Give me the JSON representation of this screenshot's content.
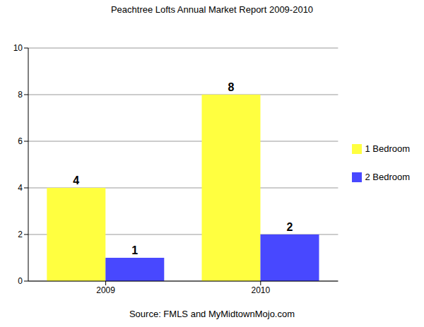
{
  "chart_data": {
    "type": "bar",
    "title": "Peachtree Lofts Annual Market Report 2009-2010",
    "annotations": [
      "Source: FMLS and MyMidtownMojo.com"
    ],
    "categories": [
      "2009",
      "2010"
    ],
    "series": [
      {
        "name": "1 Bedroom",
        "color": "#ffff40",
        "values": [
          4,
          8
        ]
      },
      {
        "name": "2 Bedroom",
        "color": "#4848ff",
        "values": [
          1,
          2
        ]
      }
    ],
    "ylim": [
      0,
      10
    ],
    "yticks": [
      0,
      2,
      4,
      6,
      8,
      10
    ],
    "grid": true,
    "legend": "right",
    "data_labels": true
  }
}
